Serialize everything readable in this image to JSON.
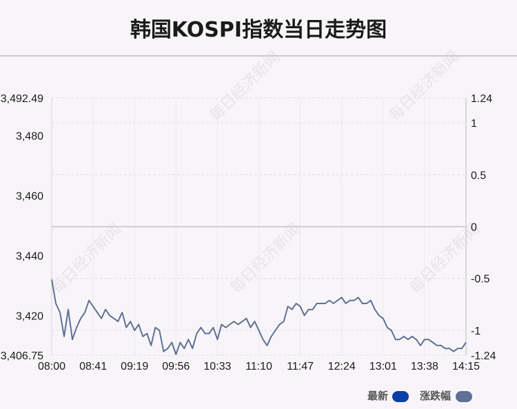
{
  "title": "韩国KOSPI指数当日走势图",
  "watermark": "每日经济新闻",
  "legend": [
    {
      "label": "最新",
      "color": "#0b3ea8"
    },
    {
      "label": "涨跌幅",
      "color": "#5e7096"
    }
  ],
  "chart_data": {
    "type": "line",
    "title": "韩国KOSPI指数当日走势图",
    "ylim": [
      3406.75,
      3492.49
    ],
    "y2lim": [
      -1.24,
      1.24
    ],
    "yticks": [
      "3,492.49",
      "3,480",
      "3,460",
      "3,440",
      "3,420",
      "3,406.75"
    ],
    "yticks_values": [
      3492.49,
      3480,
      3460,
      3440,
      3420,
      3406.75
    ],
    "y2ticks": [
      "1.24",
      "1",
      "0.5",
      "0",
      "-0.5",
      "-1",
      "-1.24"
    ],
    "y2ticks_values": [
      1.24,
      1,
      0.5,
      0,
      -0.5,
      -1,
      -1.24
    ],
    "xticks": [
      "08:00",
      "08:41",
      "09:19",
      "09:56",
      "10:33",
      "11:10",
      "11:47",
      "12:24",
      "13:01",
      "13:38",
      "14:15"
    ],
    "baseline": 3449.6,
    "series": [
      {
        "color": "#5e7096",
        "x": [
          0,
          1,
          2,
          3,
          4,
          5,
          6,
          7,
          8,
          9,
          10,
          11,
          12,
          13,
          14,
          15,
          16,
          17,
          18,
          19,
          20,
          21,
          22,
          23,
          24,
          25,
          26,
          27,
          28,
          29,
          30,
          31,
          32,
          33,
          34,
          35,
          36,
          37,
          38,
          39,
          40,
          41,
          42,
          43,
          44,
          45,
          46,
          47,
          48,
          49,
          50,
          51,
          52,
          53,
          54,
          55,
          56,
          57,
          58,
          59,
          60,
          61,
          62,
          63,
          64,
          65,
          66,
          67,
          68,
          69,
          70,
          71,
          72,
          73,
          74,
          75,
          76,
          77,
          78,
          79,
          80,
          81,
          82,
          83,
          84,
          85,
          86,
          87,
          88,
          89,
          90,
          91,
          92,
          93,
          94,
          95,
          96,
          97,
          98,
          99,
          100
        ],
        "values": [
          3432,
          3424,
          3421,
          3413,
          3422,
          3412,
          3416,
          3419,
          3421,
          3425,
          3423,
          3421,
          3419,
          3422,
          3420,
          3419,
          3418,
          3421,
          3416,
          3418,
          3415,
          3417,
          3413,
          3414,
          3410,
          3416,
          3415,
          3408,
          3409,
          3411,
          3407,
          3411,
          3409,
          3412,
          3409,
          3414,
          3416,
          3414,
          3414,
          3416,
          3412,
          3417,
          3416,
          3417,
          3418,
          3417,
          3418,
          3419,
          3416,
          3418,
          3415,
          3412,
          3410,
          3413,
          3415,
          3417,
          3418,
          3423,
          3422,
          3424,
          3423,
          3420,
          3422,
          3422,
          3424,
          3424,
          3424,
          3425,
          3424,
          3425,
          3426,
          3424,
          3425,
          3425,
          3426,
          3424,
          3424,
          3425,
          3422,
          3420,
          3419,
          3416,
          3415,
          3412,
          3412,
          3413,
          3412,
          3413,
          3412,
          3410,
          3412,
          3412,
          3411,
          3410,
          3410,
          3409,
          3409,
          3408,
          3409,
          3409,
          3411
        ]
      }
    ]
  }
}
